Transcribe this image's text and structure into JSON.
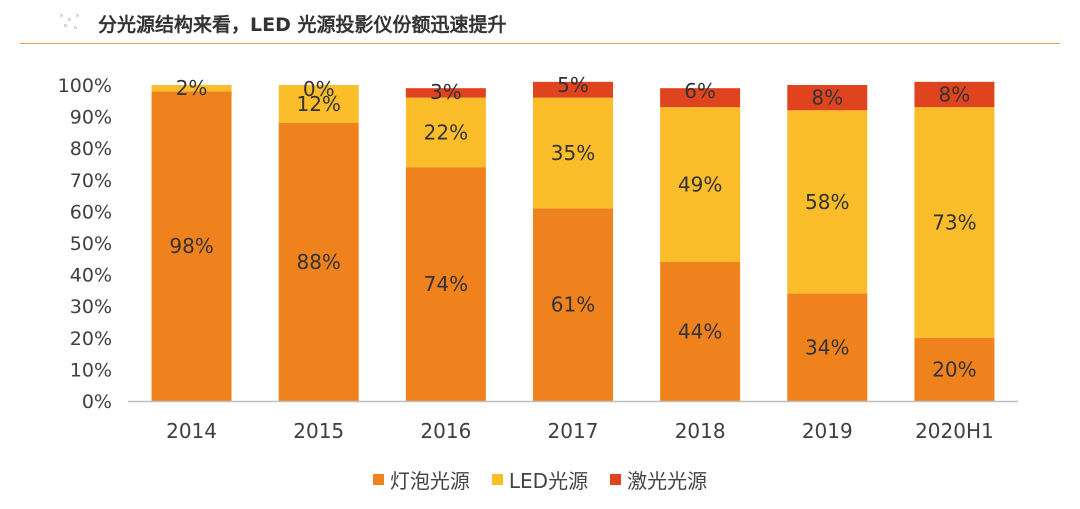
{
  "header": {
    "title": "分光源结构来看，LED 光源投影仪份额迅速提升"
  },
  "colors": {
    "bulb": "#F0821E",
    "led": "#FBBD2A",
    "laser": "#E0441F",
    "axis": "#bfbfbf",
    "text": "#404040",
    "rule": "#f0a050"
  },
  "chart_data": {
    "type": "bar",
    "stacked": true,
    "title": "",
    "xlabel": "",
    "ylabel": "",
    "ylim": [
      0,
      100
    ],
    "yticks": [
      "0%",
      "10%",
      "20%",
      "30%",
      "40%",
      "50%",
      "60%",
      "70%",
      "80%",
      "90%",
      "100%"
    ],
    "categories": [
      "2014",
      "2015",
      "2016",
      "2017",
      "2018",
      "2019",
      "2020H1"
    ],
    "series": [
      {
        "name": "灯泡光源",
        "values": [
          98,
          88,
          74,
          61,
          44,
          34,
          20
        ],
        "labels": [
          "98%",
          "88%",
          "74%",
          "61%",
          "44%",
          "34%",
          "20%"
        ]
      },
      {
        "name": "LED光源",
        "values": [
          2,
          12,
          22,
          35,
          49,
          58,
          73
        ],
        "labels": [
          "2%",
          "12%",
          "22%",
          "35%",
          "49%",
          "58%",
          "73%"
        ]
      },
      {
        "name": "激光光源",
        "values": [
          0,
          0,
          3,
          5,
          6,
          8,
          8
        ],
        "labels": [
          "",
          "0%",
          "3%",
          "5%",
          "6%",
          "8%",
          "8%"
        ]
      }
    ],
    "legend_position": "bottom"
  }
}
